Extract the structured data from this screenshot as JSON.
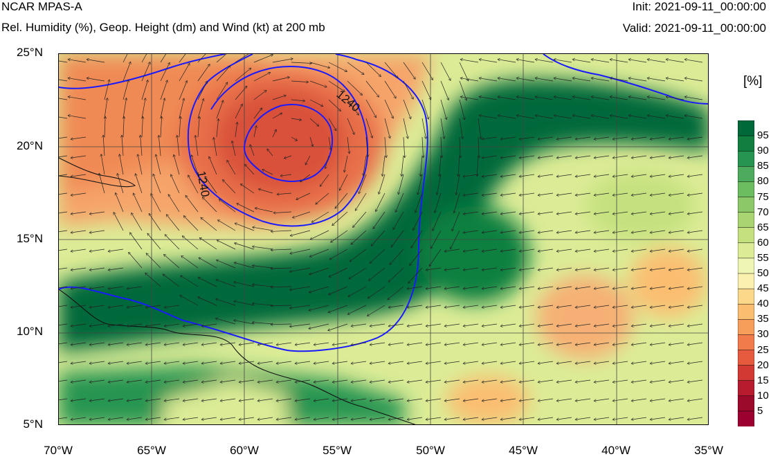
{
  "header": {
    "title": "NCAR MPAS-A",
    "subtitle": "Rel. Humidity (%), Geop. Height (dm) and Wind (kt) at 200 mb",
    "init": "Init: 2021-09-11_00:00:00",
    "valid": "Valid: 2021-09-11_00:00:00"
  },
  "map": {
    "latitude_labels": [
      "25°N",
      "20°N",
      "15°N",
      "10°N",
      "5°N"
    ],
    "longitude_labels": [
      "70°W",
      "65°W",
      "60°W",
      "55°W",
      "50°W",
      "45°W",
      "40°W",
      "35°W"
    ],
    "lat_range": [
      5,
      25
    ],
    "lon_range": [
      -70,
      -35
    ],
    "contour_label": "1240",
    "colorbar": {
      "units": "[%]",
      "ticks": [
        "95",
        "90",
        "85",
        "80",
        "75",
        "70",
        "65",
        "60",
        "55",
        "50",
        "45",
        "40",
        "35",
        "30",
        "25",
        "20",
        "15",
        "10",
        "5"
      ],
      "colors": [
        "#00693a",
        "#11803f",
        "#269551",
        "#4dab5d",
        "#6cbc60",
        "#8cc868",
        "#a9d472",
        "#c5e17f",
        "#dcec96",
        "#eff6b3",
        "#fbf0b0",
        "#fcd98a",
        "#fbbe71",
        "#f89e5b",
        "#f27b4b",
        "#e65a3e",
        "#d13932",
        "#b61c2d",
        "#9b0a2a",
        "#9b0030"
      ]
    }
  }
}
